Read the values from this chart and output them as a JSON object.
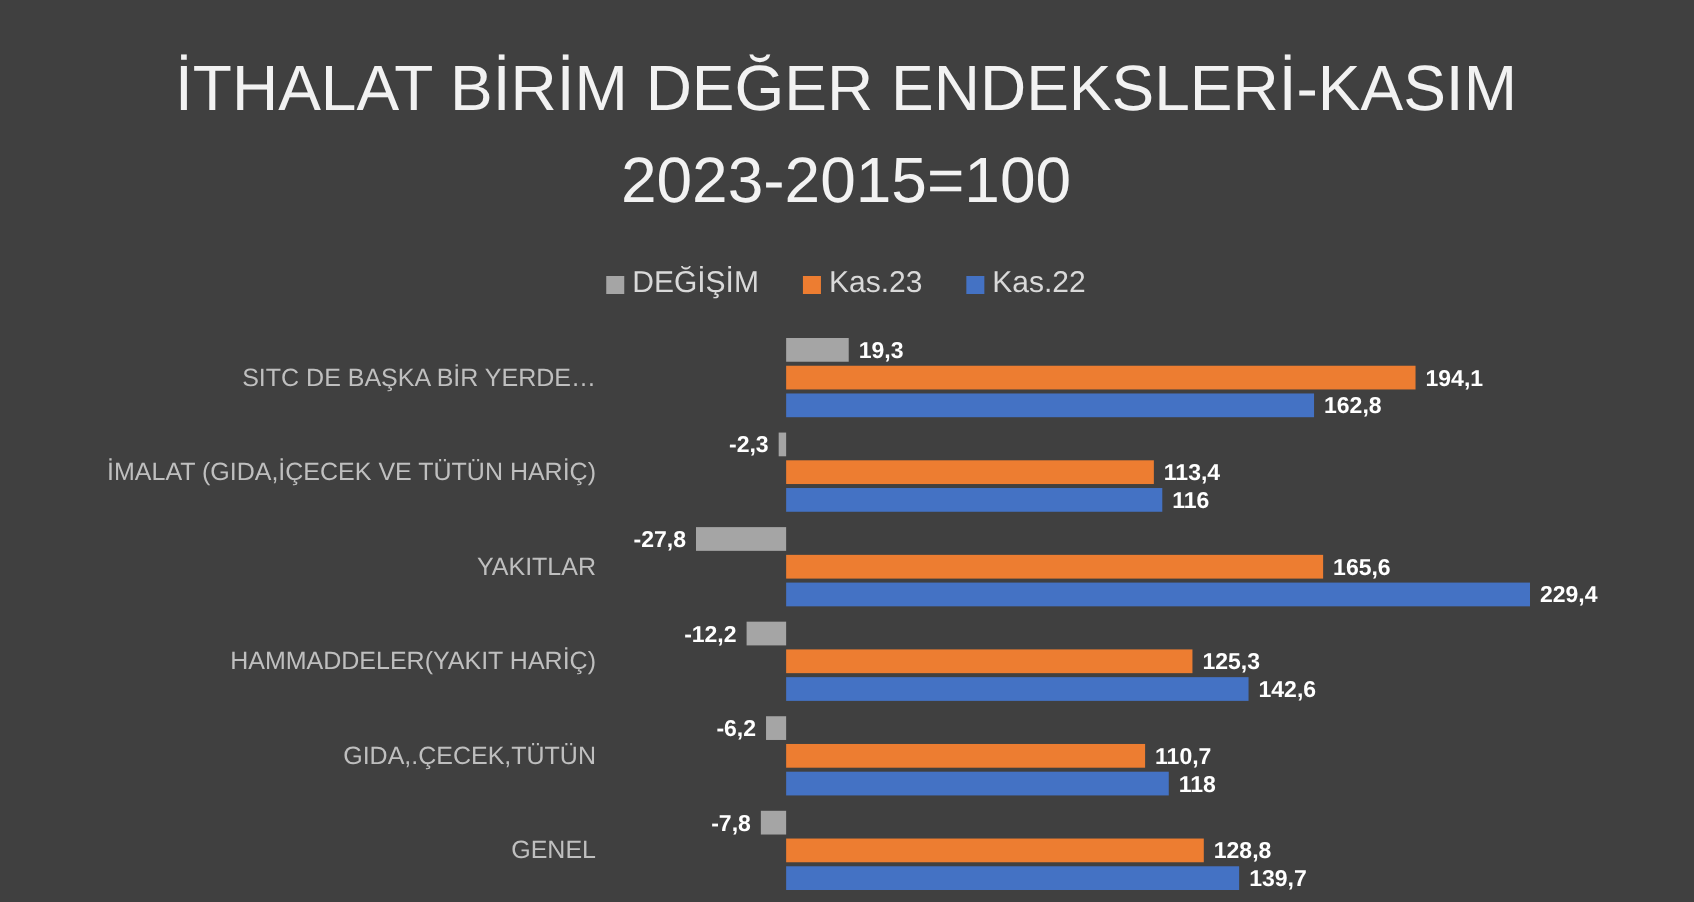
{
  "chart_data": {
    "type": "bar",
    "orientation": "horizontal",
    "title": "İTHALAT BİRİM DEĞER ENDEKSLERİ-KASIM 2023-2015=100",
    "categories": [
      "SITC DE BAŞKA BİR YERDE…",
      "İMALAT (GIDA,İÇECEK VE TÜTÜN HARİÇ)",
      "YAKITLAR",
      "HAMMADDELER(YAKIT HARİÇ)",
      "GIDA,.ÇECEK,TÜTÜN",
      "GENEL"
    ],
    "series": [
      {
        "name": "DEĞİŞİM",
        "color": "#a5a5a5",
        "values": [
          19.3,
          -2.3,
          -27.8,
          -12.2,
          -6.2,
          -7.8
        ],
        "value_labels": [
          "19,3",
          "-2,3",
          "-27,8",
          "-12,2",
          "-6,2",
          "-7,8"
        ]
      },
      {
        "name": "Kas.23",
        "color": "#ed7d31",
        "values": [
          194.1,
          113.4,
          165.6,
          125.3,
          110.7,
          128.8
        ],
        "value_labels": [
          "194,1",
          "113,4",
          "165,6",
          "125,3",
          "110,7",
          "128,8"
        ]
      },
      {
        "name": "Kas.22",
        "color": "#4472c4",
        "values": [
          162.8,
          116,
          229.4,
          142.6,
          118,
          139.7
        ],
        "value_labels": [
          "162,8",
          "116",
          "229,4",
          "142,6",
          "118",
          "139,7"
        ]
      }
    ],
    "legend": "top",
    "grid": false
  }
}
